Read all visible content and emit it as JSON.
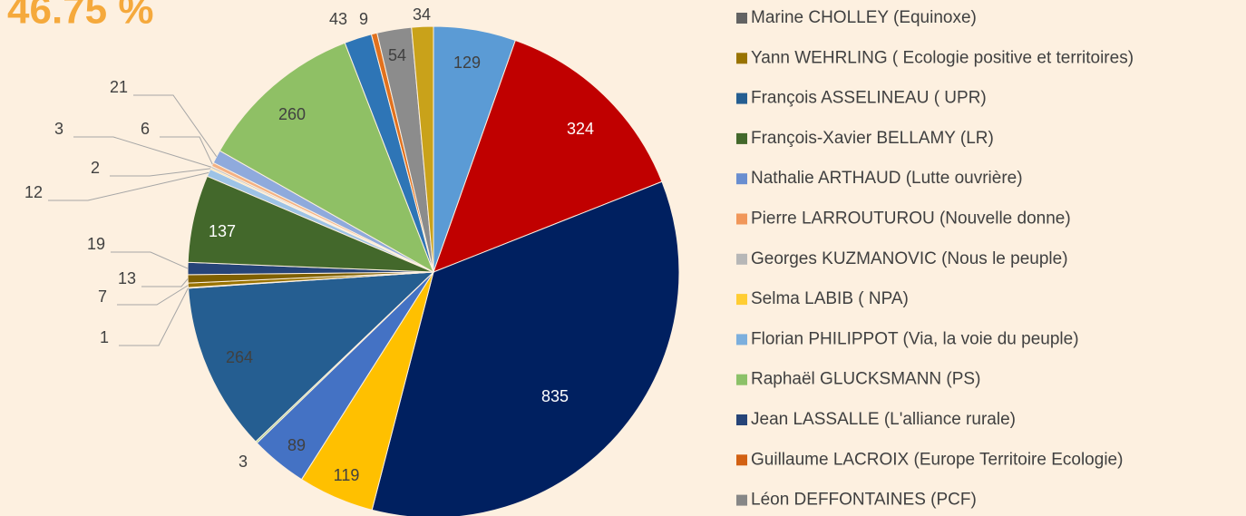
{
  "chart_data": {
    "type": "pie",
    "title": "46.75 %",
    "values": [
      129,
      324,
      835,
      119,
      89,
      3,
      264,
      1,
      7,
      13,
      19,
      137,
      12,
      2,
      3,
      6,
      21,
      260,
      43,
      9,
      54,
      34
    ],
    "colors": [
      "#5b9bd5",
      "#c00000",
      "#002060",
      "#ffc000",
      "#4472c4",
      "#a9d18e",
      "#255e91",
      "#7f7f7f",
      "#997300",
      "#7f6000",
      "#264478",
      "#43682b",
      "#9dc3e6",
      "#ffd966",
      "#bfbfbf",
      "#f4b183",
      "#8faadc",
      "#8fc065",
      "#2e75b6",
      "#e2711d",
      "#8c8c8c",
      "#c9a21a"
    ],
    "legend": [
      {
        "name": "Marine CHOLLEY (Equinoxe)",
        "color": "#636363"
      },
      {
        "name": "Yann WEHRLING ( Ecologie positive et territoires)",
        "color": "#997300"
      },
      {
        "name": "François ASSELINEAU ( UPR)",
        "color": "#255e91"
      },
      {
        "name": "François-Xavier BELLAMY (LR)",
        "color": "#43682b"
      },
      {
        "name": "Nathalie ARTHAUD (Lutte ouvrière)",
        "color": "#698ed0"
      },
      {
        "name": "Pierre LARROUTUROU (Nouvelle donne)",
        "color": "#f1975a"
      },
      {
        "name": "Georges KUZMANOVIC (Nous le peuple)",
        "color": "#b7b7b7"
      },
      {
        "name": "Selma LABIB ( NPA)",
        "color": "#ffcd33"
      },
      {
        "name": "Florian PHILIPPOT (Via, la voie du peuple)",
        "color": "#7cafdd"
      },
      {
        "name": "Raphaël GLUCKSMANN (PS)",
        "color": "#8cc168"
      },
      {
        "name": "Jean LASSALLE (L'alliance rurale)",
        "color": "#264478"
      },
      {
        "name": "Guillaume LACROIX (Europe Territoire Ecologie)",
        "color": "#d26012"
      },
      {
        "name": "Léon DEFFONTAINES (PCF)",
        "color": "#878787"
      }
    ]
  }
}
